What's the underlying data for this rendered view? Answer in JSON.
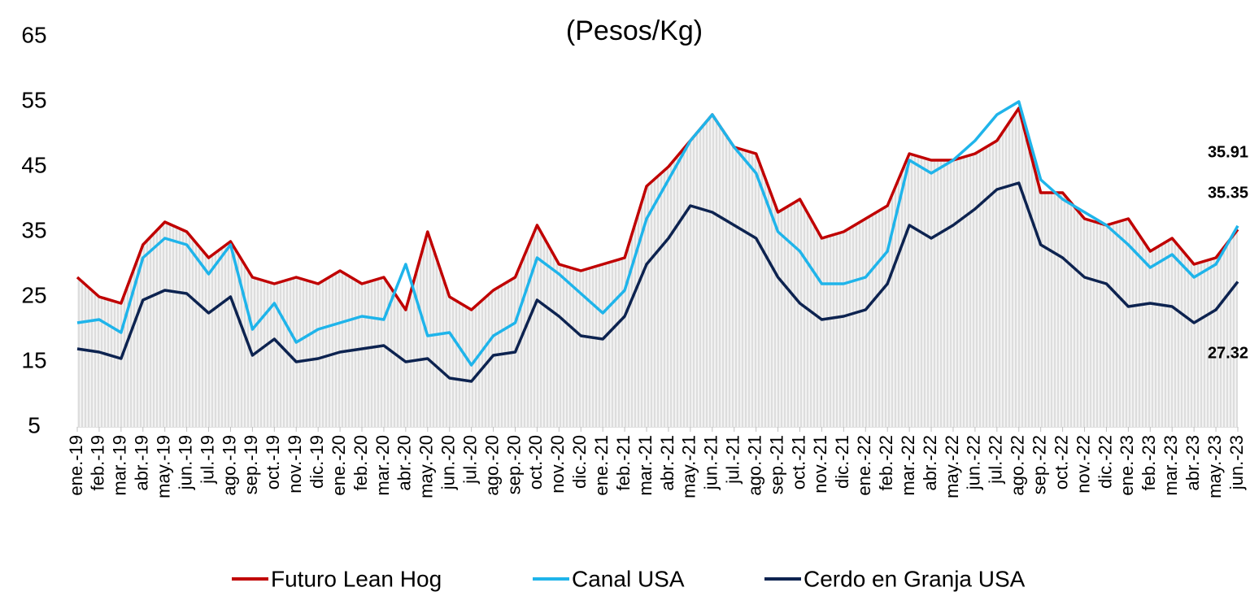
{
  "chart_data": {
    "type": "line",
    "title": "(Pesos/Kg)",
    "categories": [
      "ene.-19",
      "feb.-19",
      "mar.-19",
      "abr.-19",
      "may.-19",
      "jun.-19",
      "jul.-19",
      "ago.-19",
      "sep.-19",
      "oct.-19",
      "nov.-19",
      "dic.-19",
      "ene.-20",
      "feb.-20",
      "mar.-20",
      "abr.-20",
      "may.-20",
      "jun.-20",
      "jul.-20",
      "ago.-20",
      "sep.-20",
      "oct.-20",
      "nov.-20",
      "dic.-20",
      "ene.-21",
      "feb.-21",
      "mar.-21",
      "abr.-21",
      "may.-21",
      "jun.-21",
      "jul.-21",
      "ago.-21",
      "sep.-21",
      "oct.-21",
      "nov.-21",
      "dic.-21",
      "ene.-22",
      "feb.-22",
      "mar.-22",
      "abr.-22",
      "may.-22",
      "jun.-22",
      "jul.-22",
      "ago.-22",
      "sep.-22",
      "oct.-22",
      "nov.-22",
      "dic.-22",
      "ene.-23",
      "feb.-23",
      "mar.-23",
      "abr.-23",
      "may.-23",
      "jun.-23"
    ],
    "series": [
      {
        "name": "Futuro Lean Hog",
        "color": "#c00000",
        "values": [
          28,
          25,
          24,
          33,
          36.5,
          35,
          31,
          33.5,
          28,
          27,
          28,
          27,
          29,
          27,
          28,
          23,
          35,
          25,
          23,
          26,
          28,
          36,
          30,
          29,
          30,
          31,
          42,
          45,
          49,
          53,
          48,
          47,
          38,
          40,
          34,
          35,
          37,
          39,
          47,
          46,
          46,
          47,
          49,
          54,
          41,
          41,
          37,
          36,
          37,
          32,
          34,
          30,
          31,
          35.35
        ]
      },
      {
        "name": "Canal USA",
        "color": "#1fb4ea",
        "values": [
          21,
          21.5,
          19.5,
          31,
          34,
          33,
          28.5,
          33,
          20,
          24,
          18,
          20,
          21,
          22,
          21.5,
          30,
          19,
          19.5,
          14.5,
          19,
          21,
          31,
          28.5,
          25.5,
          22.5,
          26,
          37,
          43,
          49,
          53,
          48,
          44,
          35,
          32,
          27,
          27,
          28,
          32,
          46,
          44,
          46,
          49,
          53,
          55,
          43,
          40,
          38,
          36,
          33,
          29.5,
          31.5,
          28,
          30,
          35.91
        ]
      },
      {
        "name": "Cerdo en Granja USA",
        "color": "#0d2350",
        "values": [
          17,
          16.5,
          15.5,
          24.5,
          26,
          25.5,
          22.5,
          25,
          16,
          18.5,
          15,
          15.5,
          16.5,
          17,
          17.5,
          15,
          15.5,
          12.5,
          12,
          16,
          16.5,
          24.5,
          22,
          19,
          18.5,
          22,
          30,
          34,
          39,
          38,
          36,
          34,
          28,
          24,
          21.5,
          22,
          23,
          27,
          36,
          34,
          36,
          38.5,
          41.5,
          42.5,
          33,
          31,
          28,
          27,
          23.5,
          24,
          23.5,
          21,
          23,
          27.32
        ]
      }
    ],
    "ylim": [
      5,
      65
    ],
    "yticks": [
      5,
      15,
      25,
      35,
      45,
      55,
      65
    ]
  }
}
